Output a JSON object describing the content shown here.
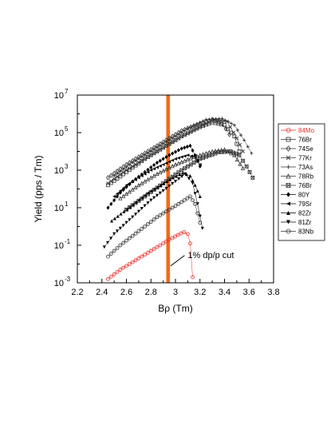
{
  "chart_data": {
    "type": "scatter",
    "xlabel": "Bρ (Tm)",
    "ylabel": "Yield (pps / Tm)",
    "xlim": [
      2.2,
      3.8
    ],
    "ylim_log10": [
      -3,
      7
    ],
    "y_scale": "log",
    "x_ticks": [
      "2.2",
      "2.4",
      "2.6",
      "2.8",
      "3",
      "3.2",
      "3.4",
      "3.6",
      "3.8"
    ],
    "y_ticks": [
      {
        "base": "10",
        "exp": "-3"
      },
      {
        "base": "10",
        "exp": "-1"
      },
      {
        "base": "10",
        "exp": "1"
      },
      {
        "base": "10",
        "exp": "3"
      },
      {
        "base": "10",
        "exp": "5"
      },
      {
        "base": "10",
        "exp": "7"
      }
    ],
    "grid": false,
    "legend_position": "right",
    "band": {
      "x_from": 2.925,
      "x_to": 2.955,
      "color": "#f26a1b"
    },
    "annotation": {
      "text": "1% dp/p cut",
      "x": 3.1,
      "y_log10": -1.5,
      "arrow_to_x": 2.96,
      "arrow_to_y_log10": -2.1
    },
    "series": [
      {
        "name": "84Mo",
        "color": "#e8302a",
        "marker": "circle-open",
        "points": [
          [
            2.45,
            -2.8
          ],
          [
            2.55,
            -2.3
          ],
          [
            2.65,
            -1.9
          ],
          [
            2.75,
            -1.5
          ],
          [
            2.85,
            -1.1
          ],
          [
            2.95,
            -0.7
          ],
          [
            3.02,
            -0.45
          ],
          [
            3.07,
            -0.3
          ],
          [
            3.1,
            -0.4
          ],
          [
            3.12,
            -0.9
          ],
          [
            3.14,
            -2.7
          ]
        ]
      },
      {
        "name": "76Br",
        "color": "#333333",
        "marker": "square-open",
        "points": [
          [
            2.45,
            2.2
          ],
          [
            2.6,
            2.9
          ],
          [
            2.75,
            3.6
          ],
          [
            2.9,
            4.2
          ],
          [
            3.05,
            4.8
          ],
          [
            3.2,
            5.3
          ],
          [
            3.3,
            5.55
          ],
          [
            3.4,
            5.4
          ],
          [
            3.48,
            4.8
          ],
          [
            3.52,
            4.0
          ]
        ]
      },
      {
        "name": "74Se",
        "color": "#333333",
        "marker": "diamond-open",
        "points": [
          [
            2.45,
            2.6
          ],
          [
            2.6,
            3.3
          ],
          [
            2.75,
            3.9
          ],
          [
            2.9,
            4.5
          ],
          [
            3.05,
            5.1
          ],
          [
            3.2,
            5.5
          ],
          [
            3.3,
            5.7
          ],
          [
            3.38,
            5.5
          ],
          [
            3.44,
            4.9
          ]
        ]
      },
      {
        "name": "77Kr",
        "color": "#333333",
        "marker": "x",
        "points": [
          [
            2.45,
            2.3
          ],
          [
            2.6,
            3.0
          ],
          [
            2.75,
            3.6
          ],
          [
            2.9,
            4.2
          ],
          [
            3.05,
            4.8
          ],
          [
            3.2,
            5.3
          ],
          [
            3.32,
            5.7
          ],
          [
            3.42,
            5.6
          ],
          [
            3.5,
            4.7
          ],
          [
            3.55,
            4.0
          ]
        ]
      },
      {
        "name": "73As",
        "color": "#333333",
        "marker": "plus",
        "points": [
          [
            2.5,
            2.7
          ],
          [
            2.65,
            3.4
          ],
          [
            2.8,
            4.0
          ],
          [
            2.95,
            4.6
          ],
          [
            3.1,
            5.2
          ],
          [
            3.25,
            5.7
          ],
          [
            3.38,
            5.75
          ],
          [
            3.48,
            5.4
          ],
          [
            3.56,
            4.6
          ],
          [
            3.62,
            3.9
          ]
        ]
      },
      {
        "name": "78Rb",
        "color": "#333333",
        "marker": "triangle-open",
        "points": [
          [
            2.55,
            1.5
          ],
          [
            2.7,
            2.2
          ],
          [
            2.85,
            2.8
          ],
          [
            3.0,
            3.3
          ],
          [
            3.15,
            3.7
          ],
          [
            3.3,
            4.0
          ],
          [
            3.4,
            4.1
          ],
          [
            3.48,
            3.8
          ],
          [
            3.55,
            3.1
          ]
        ]
      },
      {
        "name": "76Br",
        "color": "#333333",
        "marker": "square-x",
        "points": [
          [
            2.6,
            0.9
          ],
          [
            2.75,
            1.6
          ],
          [
            2.9,
            2.3
          ],
          [
            3.05,
            3.0
          ],
          [
            3.2,
            3.6
          ],
          [
            3.35,
            3.95
          ],
          [
            3.45,
            4.0
          ],
          [
            3.52,
            3.8
          ],
          [
            3.58,
            3.2
          ],
          [
            3.63,
            2.6
          ]
        ]
      },
      {
        "name": "80Y",
        "color": "#000000",
        "marker": "diamond",
        "points": [
          [
            2.45,
            1.0
          ],
          [
            2.55,
            1.8
          ],
          [
            2.65,
            2.4
          ],
          [
            2.75,
            2.9
          ],
          [
            2.85,
            3.4
          ],
          [
            2.95,
            3.8
          ],
          [
            3.05,
            4.15
          ],
          [
            3.12,
            4.3
          ],
          [
            3.16,
            3.8
          ],
          [
            3.2,
            3.2
          ]
        ]
      },
      {
        "name": "79Sr",
        "color": "#000000",
        "marker": "triangle-left",
        "points": [
          [
            2.5,
            1.6
          ],
          [
            2.6,
            2.2
          ],
          [
            2.7,
            2.6
          ],
          [
            2.8,
            3.0
          ],
          [
            2.9,
            3.3
          ],
          [
            3.0,
            3.6
          ],
          [
            3.1,
            3.8
          ],
          [
            3.16,
            3.7
          ],
          [
            3.2,
            3.3
          ]
        ]
      },
      {
        "name": "82Zr",
        "color": "#000000",
        "marker": "triangle",
        "points": [
          [
            2.48,
            0.3
          ],
          [
            2.58,
            0.8
          ],
          [
            2.68,
            1.3
          ],
          [
            2.78,
            1.8
          ],
          [
            2.88,
            2.2
          ],
          [
            2.98,
            2.6
          ],
          [
            3.06,
            2.85
          ],
          [
            3.12,
            2.7
          ],
          [
            3.16,
            2.2
          ],
          [
            3.2,
            1.6
          ]
        ]
      },
      {
        "name": "81Zr",
        "color": "#000000",
        "marker": "triangle-down",
        "points": [
          [
            2.42,
            -1.1
          ],
          [
            2.5,
            -0.4
          ],
          [
            2.6,
            0.2
          ],
          [
            2.7,
            0.8
          ],
          [
            2.8,
            1.4
          ],
          [
            2.9,
            1.9
          ],
          [
            3.0,
            2.4
          ],
          [
            3.08,
            2.8
          ],
          [
            3.14,
            2.3
          ],
          [
            3.18,
            1.2
          ],
          [
            3.22,
            -0.1
          ]
        ]
      },
      {
        "name": "83Nb",
        "color": "#333333",
        "marker": "circle-open",
        "points": [
          [
            2.45,
            -1.6
          ],
          [
            2.55,
            -1.0
          ],
          [
            2.65,
            -0.5
          ],
          [
            2.75,
            0.0
          ],
          [
            2.85,
            0.5
          ],
          [
            2.95,
            0.9
          ],
          [
            3.05,
            1.3
          ],
          [
            3.12,
            1.6
          ],
          [
            3.16,
            1.2
          ],
          [
            3.2,
            0.2
          ]
        ]
      }
    ]
  }
}
